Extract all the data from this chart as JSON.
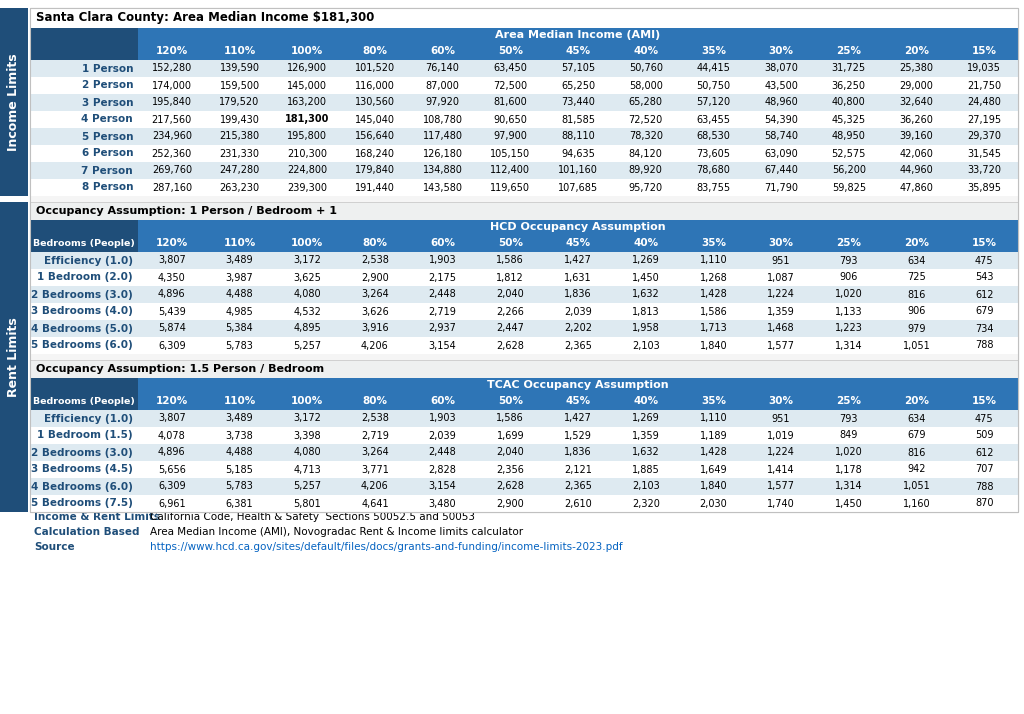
{
  "title": "Santa Clara County: Area Median Income $181,300",
  "ami_header": "Area Median Income (AMI)",
  "hcd_header": "HCD Occupancy Assumption",
  "tcac_header": "TCAC Occupancy Assumption",
  "occ_assumption_1": "Occupancy Assumption: 1 Person / Bedroom + 1",
  "occ_assumption_2": "Occupancy Assumption: 1.5 Person / Bedroom",
  "sidebar_income": "Income Limits",
  "sidebar_rent": "Rent Limits",
  "col_headers": [
    "120%",
    "110%",
    "100%",
    "80%",
    "60%",
    "50%",
    "45%",
    "40%",
    "35%",
    "30%",
    "25%",
    "20%",
    "15%"
  ],
  "income_row_labels": [
    "1 Person",
    "2 Person",
    "3 Person",
    "4 Person",
    "5 Person",
    "6 Person",
    "7 Person",
    "8 Person"
  ],
  "income_data": [
    [
      152280,
      139590,
      126900,
      101520,
      76140,
      63450,
      57105,
      50760,
      44415,
      38070,
      31725,
      25380,
      19035
    ],
    [
      174000,
      159500,
      145000,
      116000,
      87000,
      72500,
      65250,
      58000,
      50750,
      43500,
      36250,
      29000,
      21750
    ],
    [
      195840,
      179520,
      163200,
      130560,
      97920,
      81600,
      73440,
      65280,
      57120,
      48960,
      40800,
      32640,
      24480
    ],
    [
      217560,
      199430,
      181300,
      145040,
      108780,
      90650,
      81585,
      72520,
      63455,
      54390,
      45325,
      36260,
      27195
    ],
    [
      234960,
      215380,
      195800,
      156640,
      117480,
      97900,
      88110,
      78320,
      68530,
      58740,
      48950,
      39160,
      29370
    ],
    [
      252360,
      231330,
      210300,
      168240,
      126180,
      105150,
      94635,
      84120,
      73605,
      63090,
      52575,
      42060,
      31545
    ],
    [
      269760,
      247280,
      224800,
      179840,
      134880,
      112400,
      101160,
      89920,
      78680,
      67440,
      56200,
      44960,
      33720
    ],
    [
      287160,
      263230,
      239300,
      191440,
      143580,
      119650,
      107685,
      95720,
      83755,
      71790,
      59825,
      47860,
      35895
    ]
  ],
  "income_bold_cell": [
    3,
    2
  ],
  "rent_hcd_row_labels": [
    "Efficiency (1.0)",
    "1 Bedroom (2.0)",
    "2 Bedrooms (3.0)",
    "3 Bedrooms (4.0)",
    "4 Bedrooms (5.0)",
    "5 Bedrooms (6.0)"
  ],
  "rent_hcd_data": [
    [
      3807,
      3489,
      3172,
      2538,
      1903,
      1586,
      1427,
      1269,
      1110,
      951,
      793,
      634,
      475
    ],
    [
      4350,
      3987,
      3625,
      2900,
      2175,
      1812,
      1631,
      1450,
      1268,
      1087,
      906,
      725,
      543
    ],
    [
      4896,
      4488,
      4080,
      3264,
      2448,
      2040,
      1836,
      1632,
      1428,
      1224,
      1020,
      816,
      612
    ],
    [
      5439,
      4985,
      4532,
      3626,
      2719,
      2266,
      2039,
      1813,
      1586,
      1359,
      1133,
      906,
      679
    ],
    [
      5874,
      5384,
      4895,
      3916,
      2937,
      2447,
      2202,
      1958,
      1713,
      1468,
      1223,
      979,
      734
    ],
    [
      6309,
      5783,
      5257,
      4206,
      3154,
      2628,
      2365,
      2103,
      1840,
      1577,
      1314,
      1051,
      788
    ]
  ],
  "rent_tcac_row_labels": [
    "Efficiency (1.0)",
    "1 Bedroom (1.5)",
    "2 Bedrooms (3.0)",
    "3 Bedrooms (4.5)",
    "4 Bedrooms (6.0)",
    "5 Bedrooms (7.5)"
  ],
  "rent_tcac_data": [
    [
      3807,
      3489,
      3172,
      2538,
      1903,
      1586,
      1427,
      1269,
      1110,
      951,
      793,
      634,
      475
    ],
    [
      4078,
      3738,
      3398,
      2719,
      2039,
      1699,
      1529,
      1359,
      1189,
      1019,
      849,
      679,
      509
    ],
    [
      4896,
      4488,
      4080,
      3264,
      2448,
      2040,
      1836,
      1632,
      1428,
      1224,
      1020,
      816,
      612
    ],
    [
      5656,
      5185,
      4713,
      3771,
      2828,
      2356,
      2121,
      1885,
      1649,
      1414,
      1178,
      942,
      707
    ],
    [
      6309,
      5783,
      5257,
      4206,
      3154,
      2628,
      2365,
      2103,
      1840,
      1577,
      1314,
      1051,
      788
    ],
    [
      6961,
      6381,
      5801,
      4641,
      3480,
      2900,
      2610,
      2320,
      2030,
      1740,
      1450,
      1160,
      870
    ]
  ],
  "footer_labels": [
    "Income & Rent Limits",
    "Calculation Based",
    "Source"
  ],
  "footer_values": [
    "California Code, Health & Safety  Sections 50052.5 and 50053",
    "Area Median Income (AMI), Novogradac Rent & Income limits calculator",
    "https://www.hcd.ca.gov/sites/default/files/docs/grants-and-funding/income-limits-2023.pdf"
  ],
  "color_header_dark": "#1F4E79",
  "color_header_blue": "#2E75B6",
  "color_row_alt": "#DEEAF1",
  "color_row_white": "#FFFFFF",
  "color_sidebar": "#1F4E79",
  "color_text_dark": "#1F4E79",
  "color_link": "#0563C1",
  "color_section_bg": "#EEF0F0",
  "color_border": "#C0C0C0"
}
